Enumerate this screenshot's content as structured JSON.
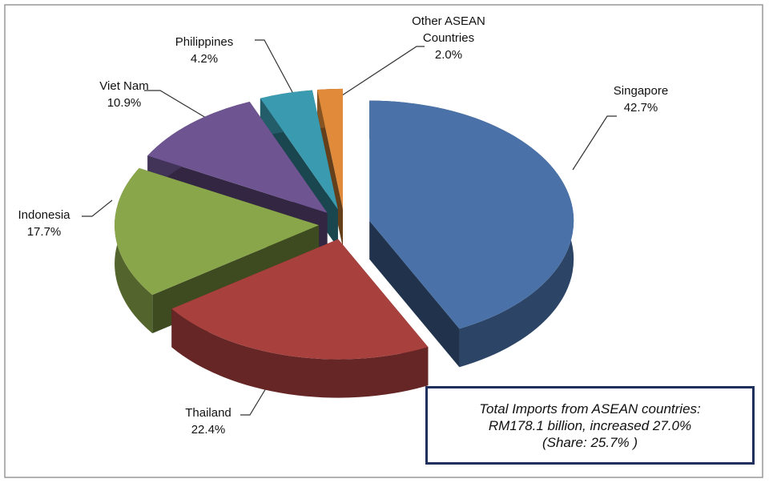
{
  "chart_data": {
    "type": "pie",
    "categories": [
      "Singapore",
      "Thailand",
      "Indonesia",
      "Viet Nam",
      "Philippines",
      "Other ASEAN Countries"
    ],
    "values": [
      42.7,
      22.4,
      17.7,
      10.9,
      4.2,
      2.0
    ],
    "value_labels": [
      "42.7%",
      "22.4%",
      "17.7%",
      "10.9%",
      "4.2%",
      "2.0%"
    ],
    "colors": [
      "#4a72a8",
      "#a8403e",
      "#8aa64a",
      "#6e5592",
      "#3a9bb0",
      "#e08a3a"
    ],
    "annotation": [
      "Total Imports from ASEAN countries:",
      "RM178.1 billion, increased 27.0%",
      "(Share: 25.7% )"
    ]
  }
}
